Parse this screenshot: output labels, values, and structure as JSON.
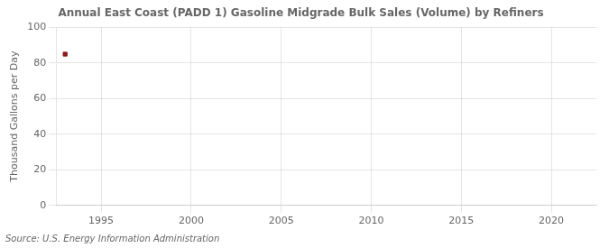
{
  "chart_data": {
    "type": "scatter",
    "title": "Annual East Coast (PADD 1) Gasoline Midgrade Bulk Sales (Volume) by Refiners",
    "y_label": "Thousand Gallons per Day",
    "source": "Source: U.S. Energy Information Administration",
    "x": [
      1993
    ],
    "values": [
      85
    ],
    "color": "#8b1a1a",
    "marker": "square",
    "xlim": [
      1992.5,
      2022.5
    ],
    "xticks": [
      1995,
      2000,
      2005,
      2010,
      2015,
      2020
    ],
    "ylim": [
      0,
      100
    ],
    "yticks": [
      0,
      20,
      40,
      60,
      80,
      100
    ],
    "grid": true
  }
}
